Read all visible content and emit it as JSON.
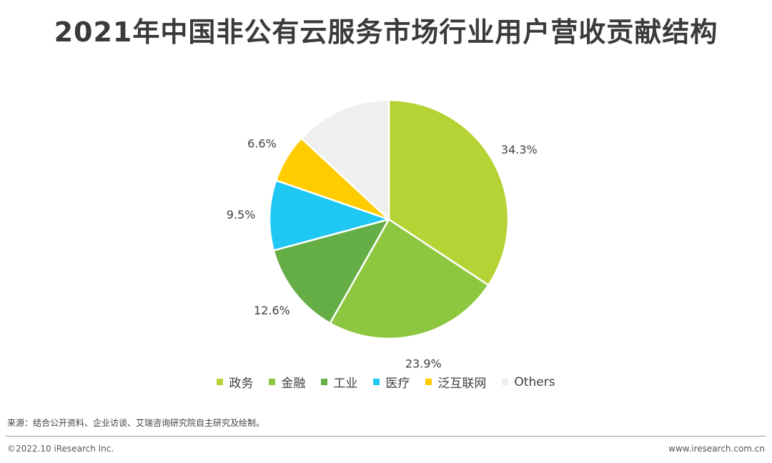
{
  "title": "2021年中国非公有云服务市场行业用户营收贡献结构",
  "source_note": "来源：结合公开资料、企业访谈、艾瑞咨询研究院自主研究及绘制。",
  "copyright": "©2022.10 iResearch Inc.",
  "website": "www.iresearch.com.cn",
  "chart_data": {
    "type": "pie",
    "title": "2021年中国非公有云服务市场行业用户营收贡献结构",
    "start_angle": "12 o'clock",
    "direction": "clockwise",
    "legend_position": "bottom",
    "slices": [
      {
        "label": "政务",
        "value": 34.3,
        "data_label": "34.3%",
        "color": "#b5d334"
      },
      {
        "label": "金融",
        "value": 23.9,
        "data_label": "23.9%",
        "color": "#8dc63f"
      },
      {
        "label": "工业",
        "value": 12.6,
        "data_label": "12.6%",
        "color": "#64ae45"
      },
      {
        "label": "医疗",
        "value": 9.5,
        "data_label": "9.5%",
        "color": "#1fc8f2"
      },
      {
        "label": "泛互联网",
        "value": 6.6,
        "data_label": "6.6%",
        "color": "#ffcc00"
      },
      {
        "label": "Others",
        "value": 13.1,
        "data_label": "",
        "color": "#efefef"
      }
    ]
  }
}
